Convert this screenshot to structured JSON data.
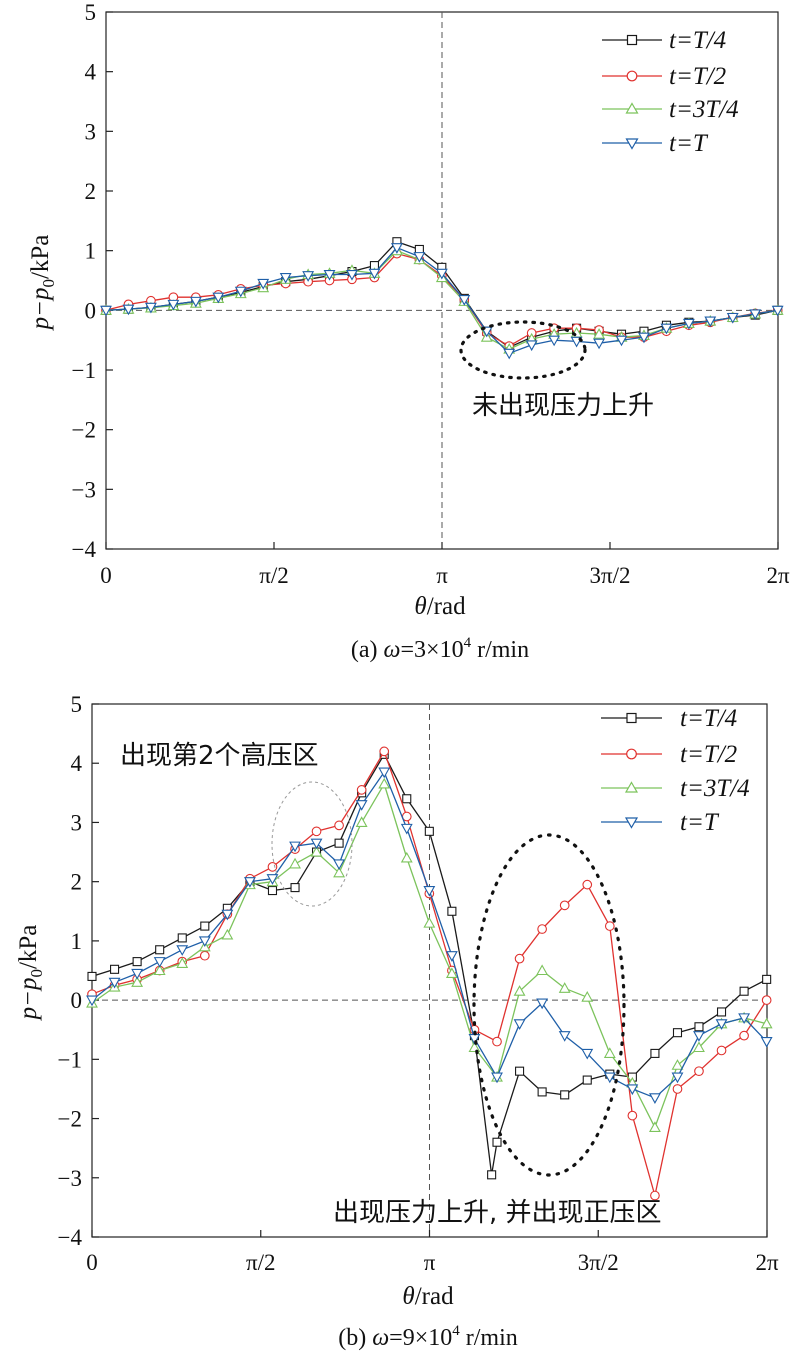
{
  "chart_data": [
    {
      "type": "line",
      "caption_prefix": "(a) ",
      "caption_omega": "ω",
      "caption_rest": "=3×10",
      "caption_exp": "4",
      "caption_unit": " r/min",
      "xlabel_sym": "θ",
      "xlabel_unit": "/rad",
      "ylabel_a": "p",
      "ylabel_b": "−p",
      "ylabel_sub": "0",
      "ylabel_unit": "/kPa",
      "xlim": [
        0,
        6.2832
      ],
      "ylim": [
        -4,
        5
      ],
      "xticks": [
        0,
        1.5708,
        3.1416,
        4.7124,
        6.2832
      ],
      "xtick_labels": [
        "0",
        "π/2",
        "π",
        "3π/2",
        "2π"
      ],
      "yticks": [
        -4,
        -3,
        -2,
        -1,
        0,
        1,
        2,
        3,
        4,
        5
      ],
      "ytick_labels": [
        "−4",
        "−3",
        "−2",
        "−1",
        "0",
        "1",
        "2",
        "3",
        "4",
        "5"
      ],
      "annotation": "未出现压力上升",
      "series": [
        {
          "name": "t=T/4",
          "color": "#1a1a1a",
          "marker": "square",
          "x": [
            0.0,
            0.21,
            0.42,
            0.63,
            0.84,
            1.05,
            1.26,
            1.47,
            1.68,
            1.89,
            2.09,
            2.3,
            2.51,
            2.72,
            2.93,
            3.14,
            3.35,
            3.56,
            3.77,
            3.98,
            4.19,
            4.4,
            4.61,
            4.82,
            5.03,
            5.24,
            5.45,
            5.65,
            5.86,
            6.07,
            6.28
          ],
          "y": [
            0.0,
            0.02,
            0.05,
            0.1,
            0.15,
            0.22,
            0.3,
            0.4,
            0.48,
            0.52,
            0.58,
            0.65,
            0.75,
            1.15,
            1.02,
            0.72,
            0.2,
            -0.35,
            -0.62,
            -0.45,
            -0.35,
            -0.3,
            -0.35,
            -0.4,
            -0.35,
            -0.25,
            -0.2,
            -0.18,
            -0.12,
            -0.08,
            0.0
          ]
        },
        {
          "name": "t=T/2",
          "color": "#e0322f",
          "marker": "circle",
          "x": [
            0.0,
            0.21,
            0.42,
            0.63,
            0.84,
            1.05,
            1.26,
            1.47,
            1.68,
            1.89,
            2.09,
            2.3,
            2.51,
            2.72,
            2.93,
            3.14,
            3.35,
            3.56,
            3.77,
            3.98,
            4.19,
            4.4,
            4.61,
            4.82,
            5.03,
            5.24,
            5.45,
            5.65,
            5.86,
            6.07,
            6.28
          ],
          "y": [
            0.0,
            0.1,
            0.16,
            0.22,
            0.22,
            0.26,
            0.36,
            0.42,
            0.45,
            0.48,
            0.5,
            0.52,
            0.55,
            0.95,
            0.85,
            0.58,
            0.18,
            -0.38,
            -0.6,
            -0.38,
            -0.3,
            -0.3,
            -0.33,
            -0.45,
            -0.45,
            -0.35,
            -0.25,
            -0.2,
            -0.12,
            -0.05,
            0.0
          ]
        },
        {
          "name": "t=3T/4",
          "color": "#7cc35c",
          "marker": "triangle",
          "x": [
            0.0,
            0.21,
            0.42,
            0.63,
            0.84,
            1.05,
            1.26,
            1.47,
            1.68,
            1.89,
            2.09,
            2.3,
            2.51,
            2.72,
            2.93,
            3.14,
            3.35,
            3.56,
            3.77,
            3.98,
            4.19,
            4.4,
            4.61,
            4.82,
            5.03,
            5.24,
            5.45,
            5.65,
            5.86,
            6.07,
            6.28
          ],
          "y": [
            0.0,
            0.02,
            0.04,
            0.08,
            0.12,
            0.2,
            0.28,
            0.38,
            0.52,
            0.6,
            0.62,
            0.67,
            0.62,
            1.0,
            0.85,
            0.55,
            0.15,
            -0.45,
            -0.65,
            -0.48,
            -0.4,
            -0.38,
            -0.4,
            -0.45,
            -0.42,
            -0.3,
            -0.22,
            -0.18,
            -0.12,
            -0.06,
            0.0
          ]
        },
        {
          "name": "t=T",
          "color": "#1f5fa8",
          "marker": "triangle-down",
          "x": [
            0.0,
            0.21,
            0.42,
            0.63,
            0.84,
            1.05,
            1.26,
            1.47,
            1.68,
            1.89,
            2.09,
            2.3,
            2.51,
            2.72,
            2.93,
            3.14,
            3.35,
            3.56,
            3.77,
            3.98,
            4.19,
            4.4,
            4.61,
            4.82,
            5.03,
            5.24,
            5.45,
            5.65,
            5.86,
            6.07,
            6.28
          ],
          "y": [
            0.0,
            0.02,
            0.05,
            0.1,
            0.15,
            0.22,
            0.32,
            0.45,
            0.55,
            0.58,
            0.6,
            0.6,
            0.62,
            1.05,
            0.9,
            0.62,
            0.18,
            -0.35,
            -0.72,
            -0.58,
            -0.5,
            -0.52,
            -0.55,
            -0.5,
            -0.45,
            -0.3,
            -0.22,
            -0.18,
            -0.12,
            -0.06,
            0.0
          ]
        }
      ]
    },
    {
      "type": "line",
      "caption_prefix": "(b) ",
      "caption_omega": "ω",
      "caption_rest": "=9×10",
      "caption_exp": "4",
      "caption_unit": " r/min",
      "xlabel_sym": "θ",
      "xlabel_unit": "/rad",
      "ylabel_a": "p",
      "ylabel_b": "−p",
      "ylabel_sub": "0",
      "ylabel_unit": "/kPa",
      "xlim": [
        0,
        6.2832
      ],
      "ylim": [
        -4,
        5
      ],
      "xticks": [
        0,
        1.5708,
        3.1416,
        4.7124,
        6.2832
      ],
      "xtick_labels": [
        "0",
        "π/2",
        "π",
        "3π/2",
        "2π"
      ],
      "yticks": [
        -4,
        -3,
        -2,
        -1,
        0,
        1,
        2,
        3,
        4,
        5
      ],
      "ytick_labels": [
        "−4",
        "−3",
        "−2",
        "−1",
        "0",
        "1",
        "2",
        "3",
        "4",
        "5"
      ],
      "annotation_1": "出现第2个高压区",
      "annotation_2": "出现压力上升, 并出现正压区",
      "series": [
        {
          "name": "t=T/4",
          "color": "#1a1a1a",
          "marker": "square",
          "x": [
            0.0,
            0.21,
            0.42,
            0.63,
            0.84,
            1.05,
            1.26,
            1.47,
            1.68,
            1.89,
            2.09,
            2.3,
            2.51,
            2.72,
            2.93,
            3.14,
            3.35,
            3.56,
            3.72,
            3.77,
            3.98,
            4.19,
            4.4,
            4.61,
            4.82,
            5.03,
            5.24,
            5.45,
            5.65,
            5.86,
            6.07,
            6.28
          ],
          "y": [
            0.4,
            0.52,
            0.65,
            0.85,
            1.05,
            1.25,
            1.55,
            2.0,
            1.85,
            1.9,
            2.5,
            2.65,
            3.5,
            4.15,
            3.4,
            2.85,
            1.5,
            -0.6,
            -2.95,
            -2.4,
            -1.2,
            -1.55,
            -1.6,
            -1.35,
            -1.25,
            -1.3,
            -0.9,
            -0.55,
            -0.45,
            -0.2,
            0.15,
            0.35
          ]
        },
        {
          "name": "t=T/2",
          "color": "#e0322f",
          "marker": "circle",
          "x": [
            0.0,
            0.21,
            0.42,
            0.63,
            0.84,
            1.05,
            1.26,
            1.47,
            1.68,
            1.89,
            2.09,
            2.3,
            2.51,
            2.72,
            2.93,
            3.14,
            3.35,
            3.56,
            3.77,
            3.98,
            4.19,
            4.4,
            4.61,
            4.82,
            5.03,
            5.24,
            5.45,
            5.65,
            5.86,
            6.07,
            6.28
          ],
          "y": [
            0.1,
            0.25,
            0.35,
            0.5,
            0.65,
            0.75,
            1.45,
            2.05,
            2.25,
            2.55,
            2.85,
            2.95,
            3.55,
            4.2,
            3.1,
            1.8,
            0.5,
            -0.5,
            -0.7,
            0.7,
            1.2,
            1.6,
            1.95,
            1.25,
            -1.95,
            -3.3,
            -1.5,
            -1.2,
            -0.85,
            -0.6,
            0.0
          ]
        },
        {
          "name": "t=3T/4",
          "color": "#7cc35c",
          "marker": "triangle",
          "x": [
            0.0,
            0.21,
            0.42,
            0.63,
            0.84,
            1.05,
            1.26,
            1.47,
            1.68,
            1.89,
            2.09,
            2.3,
            2.51,
            2.72,
            2.93,
            3.14,
            3.35,
            3.56,
            3.77,
            3.98,
            4.19,
            4.4,
            4.61,
            4.82,
            5.03,
            5.24,
            5.45,
            5.65,
            5.86,
            6.07,
            6.28
          ],
          "y": [
            -0.05,
            0.22,
            0.3,
            0.5,
            0.62,
            0.9,
            1.1,
            1.95,
            2.0,
            2.3,
            2.5,
            2.15,
            3.0,
            3.65,
            2.4,
            1.3,
            0.45,
            -0.8,
            -1.3,
            0.15,
            0.5,
            0.2,
            0.05,
            -0.9,
            -1.4,
            -2.15,
            -1.1,
            -0.8,
            -0.4,
            -0.3,
            -0.4
          ]
        },
        {
          "name": "t=T",
          "color": "#1f5fa8",
          "marker": "triangle-down",
          "x": [
            0.0,
            0.21,
            0.42,
            0.63,
            0.84,
            1.05,
            1.26,
            1.47,
            1.68,
            1.89,
            2.09,
            2.3,
            2.51,
            2.72,
            2.93,
            3.14,
            3.35,
            3.56,
            3.77,
            3.98,
            4.19,
            4.4,
            4.61,
            4.82,
            5.03,
            5.24,
            5.45,
            5.65,
            5.86,
            6.07,
            6.28
          ],
          "y": [
            0.0,
            0.3,
            0.45,
            0.65,
            0.85,
            1.0,
            1.45,
            2.0,
            2.05,
            2.6,
            2.65,
            2.3,
            3.3,
            3.85,
            2.9,
            1.85,
            0.75,
            -0.65,
            -1.3,
            -0.4,
            -0.05,
            -0.6,
            -0.9,
            -1.3,
            -1.5,
            -1.65,
            -1.3,
            -0.6,
            -0.4,
            -0.3,
            -0.7
          ]
        }
      ]
    }
  ]
}
